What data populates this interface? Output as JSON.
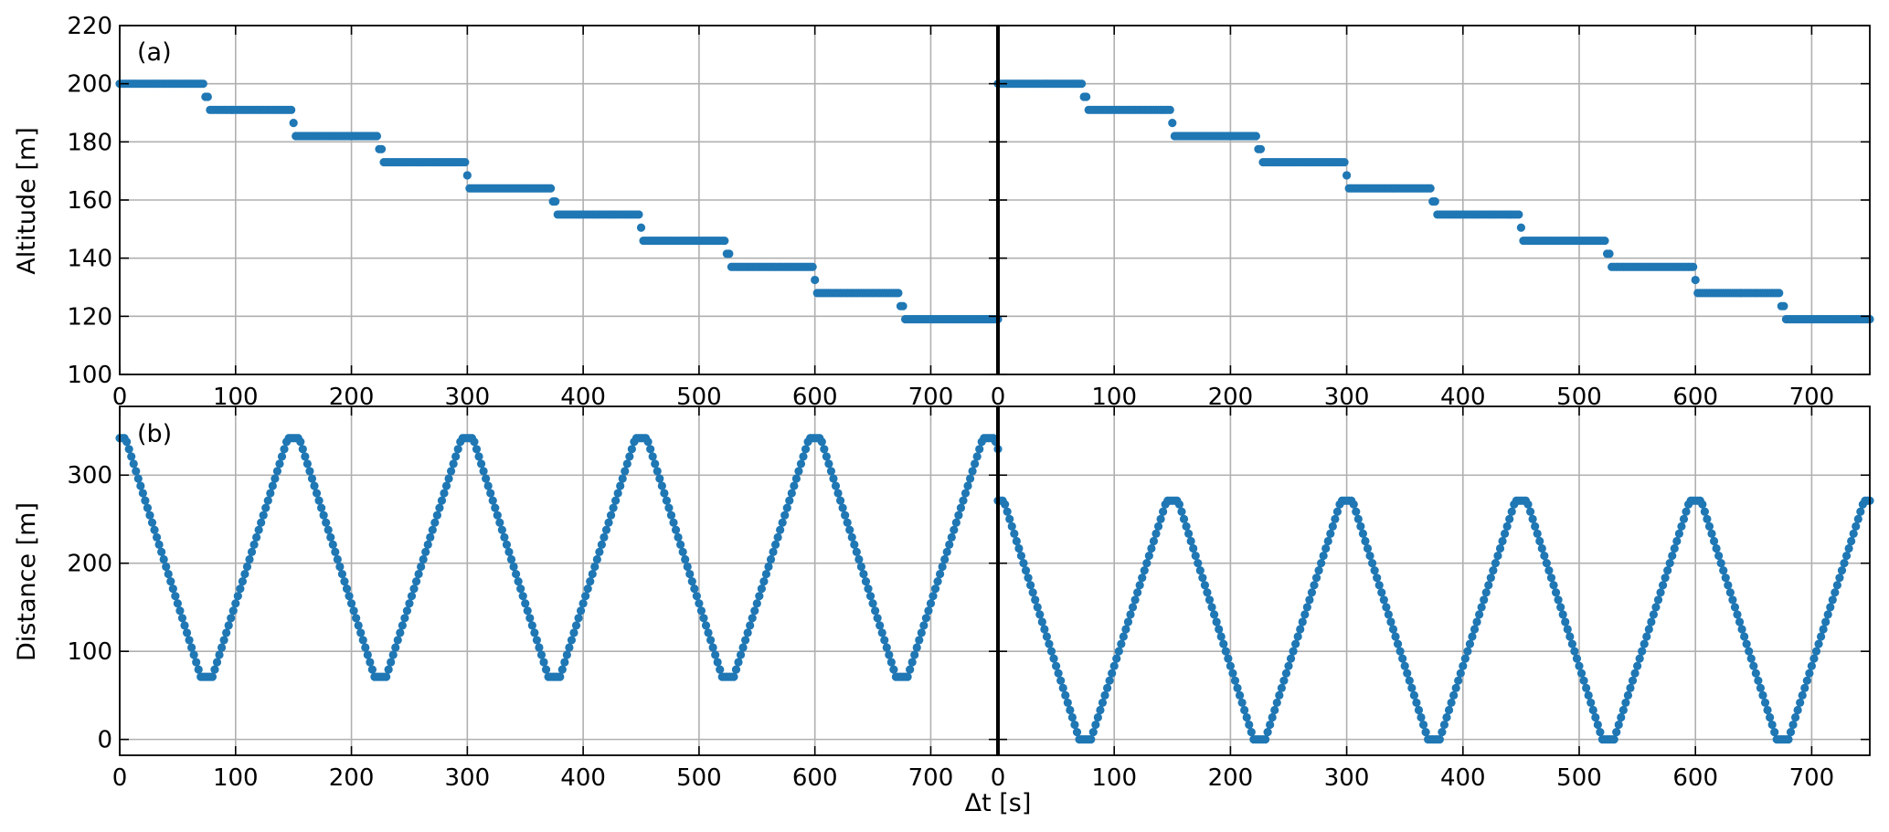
{
  "chart_data": [
    {
      "type": "scatter",
      "panel_label": "(a)",
      "ylabel": "Altitude [m]",
      "ylim": [
        100,
        220
      ],
      "yticks": [
        100,
        120,
        140,
        160,
        180,
        200,
        220
      ],
      "grid": true,
      "series_color": "#1f77b4",
      "subplots": [
        {
          "xlim": [
            0,
            758
          ],
          "xticks": [
            0,
            100,
            200,
            300,
            400,
            500,
            600,
            700
          ],
          "steps": {
            "levels": [
              200,
              191,
              182,
              173,
              164,
              155,
              146,
              137,
              128,
              119
            ],
            "transitions_s": [
              75,
              150,
              225,
              300,
              375,
              450,
              525,
              600,
              675
            ],
            "t_end_s": 758
          }
        },
        {
          "xlim": [
            0,
            750
          ],
          "xticks": [
            0,
            100,
            200,
            300,
            400,
            500,
            600,
            700
          ],
          "steps": {
            "levels": [
              200,
              191,
              182,
              173,
              164,
              155,
              146,
              137,
              128,
              119
            ],
            "transitions_s": [
              75,
              150,
              225,
              300,
              375,
              450,
              525,
              600,
              675
            ],
            "t_end_s": 750
          }
        }
      ]
    },
    {
      "type": "scatter",
      "panel_label": "(b)",
      "ylabel": "Distance [m]",
      "xlabel": "Δt [s]",
      "ylim": [
        -18,
        378
      ],
      "yticks": [
        0,
        100,
        200,
        300
      ],
      "grid": true,
      "series_color": "#1f77b4",
      "subplots": [
        {
          "xlim": [
            0,
            758
          ],
          "xticks": [
            0,
            100,
            200,
            300,
            400,
            500,
            600,
            700
          ],
          "triangle": {
            "max_m": 342,
            "min_m": 71,
            "period_s": 150,
            "trough_centers_s": [
              75,
              225,
              375,
              525,
              675
            ],
            "peak_centers_s": [
              0,
              150,
              300,
              450,
              600,
              750
            ],
            "flat_half_width_s": 5,
            "t_end_s": 758
          }
        },
        {
          "xlim": [
            0,
            750
          ],
          "xticks": [
            0,
            100,
            200,
            300,
            400,
            500,
            600,
            700
          ],
          "triangle": {
            "max_m": 271,
            "min_m": 0,
            "period_s": 150,
            "trough_centers_s": [
              75,
              225,
              375,
              525,
              675
            ],
            "peak_centers_s": [
              0,
              150,
              300,
              450,
              600,
              750
            ],
            "flat_half_width_s": 5,
            "t_end_s": 750
          }
        }
      ]
    }
  ]
}
